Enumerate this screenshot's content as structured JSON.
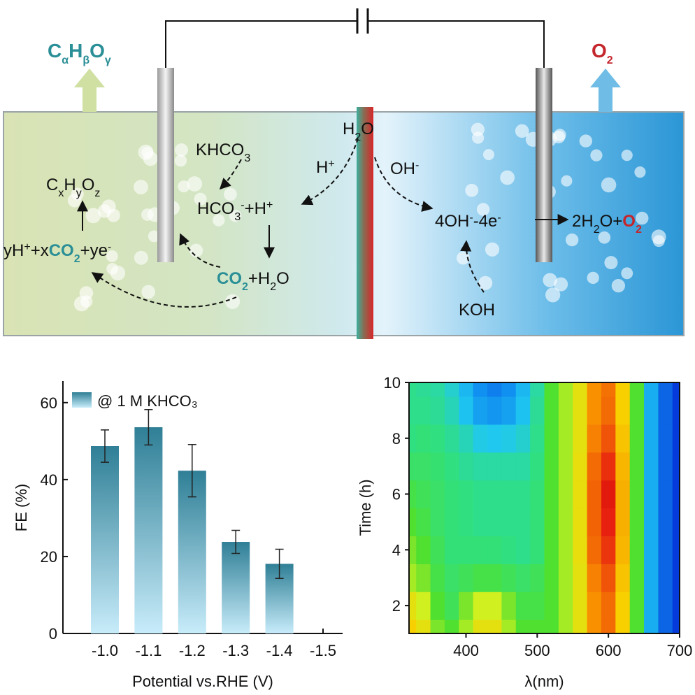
{
  "diagram": {
    "cathode_product": [
      "C",
      "α",
      "H",
      "β",
      "O",
      "γ"
    ],
    "anode_product": [
      "O",
      "2"
    ],
    "water": [
      "H",
      "2",
      "O"
    ],
    "khco3": [
      "KHCO",
      "3"
    ],
    "proton": [
      "H",
      "+"
    ],
    "hydroxide": [
      "OH",
      "-"
    ],
    "cxhyoz": [
      "C",
      "x",
      "H",
      "y",
      "O",
      "z"
    ],
    "bicarbonate": [
      "HCO",
      "3",
      "-",
      "+H",
      "+"
    ],
    "reduction": [
      "yH",
      "+",
      "+x",
      "CO",
      "2",
      "+ye",
      "-"
    ],
    "co2_water": [
      "CO",
      "2",
      "+H",
      "2",
      "O"
    ],
    "oxidation_left": [
      "4OH",
      "-",
      "-4e",
      "-"
    ],
    "oxidation_right": [
      "2H",
      "2",
      "O+",
      "O",
      "2"
    ],
    "koh": "KOH"
  },
  "chart_data": [
    {
      "type": "bar",
      "categories": [
        "-1.0",
        "-1.1",
        "-1.2",
        "-1.3",
        "-1.4",
        "-1.5"
      ],
      "series": [
        {
          "name": "@ 1 M KHCO₃",
          "color": "#2f7f96",
          "values": [
            48.7,
            53.6,
            42.3,
            23.8,
            18.1,
            null
          ],
          "errors": [
            4.2,
            4.6,
            6.8,
            3.0,
            3.8,
            null
          ]
        }
      ],
      "ylim": [
        0,
        65.6
      ],
      "yticks": [
        0,
        20,
        40,
        60
      ],
      "xlabel": "Potential vs.RHE (V)",
      "ylabel": "FE (%)"
    },
    {
      "type": "contour",
      "x": [
        320,
        340,
        360,
        380,
        400,
        420,
        440,
        460,
        480,
        500,
        520,
        540,
        560,
        580,
        600,
        620,
        640,
        660,
        680,
        700
      ],
      "y": [
        1,
        2,
        3,
        4,
        5,
        6,
        7,
        8,
        9,
        10
      ],
      "z": [
        [
          0.7,
          0.65,
          0.5,
          0.45,
          0.55,
          0.65,
          0.65,
          0.55,
          0.45,
          0.45,
          0.45,
          0.55,
          0.65,
          0.8,
          0.85,
          0.7,
          0.45,
          0.2,
          0.1,
          0.05
        ],
        [
          0.65,
          0.6,
          0.45,
          0.4,
          0.5,
          0.6,
          0.6,
          0.5,
          0.42,
          0.42,
          0.45,
          0.55,
          0.65,
          0.8,
          0.85,
          0.7,
          0.45,
          0.2,
          0.1,
          0.05
        ],
        [
          0.55,
          0.5,
          0.42,
          0.38,
          0.4,
          0.42,
          0.42,
          0.4,
          0.38,
          0.4,
          0.45,
          0.55,
          0.65,
          0.82,
          0.88,
          0.72,
          0.45,
          0.2,
          0.1,
          0.05
        ],
        [
          0.5,
          0.45,
          0.4,
          0.36,
          0.36,
          0.36,
          0.36,
          0.35,
          0.34,
          0.36,
          0.45,
          0.55,
          0.66,
          0.85,
          0.92,
          0.74,
          0.45,
          0.2,
          0.1,
          0.05
        ],
        [
          0.45,
          0.42,
          0.38,
          0.36,
          0.35,
          0.34,
          0.34,
          0.34,
          0.34,
          0.36,
          0.45,
          0.55,
          0.66,
          0.86,
          0.95,
          0.75,
          0.45,
          0.2,
          0.1,
          0.05
        ],
        [
          0.42,
          0.4,
          0.38,
          0.36,
          0.35,
          0.34,
          0.34,
          0.34,
          0.34,
          0.36,
          0.45,
          0.55,
          0.66,
          0.86,
          0.96,
          0.75,
          0.45,
          0.2,
          0.1,
          0.05
        ],
        [
          0.38,
          0.38,
          0.37,
          0.35,
          0.33,
          0.32,
          0.32,
          0.32,
          0.32,
          0.35,
          0.45,
          0.55,
          0.66,
          0.85,
          0.93,
          0.74,
          0.45,
          0.2,
          0.1,
          0.05
        ],
        [
          0.35,
          0.36,
          0.35,
          0.33,
          0.3,
          0.26,
          0.25,
          0.26,
          0.28,
          0.34,
          0.45,
          0.55,
          0.65,
          0.82,
          0.88,
          0.72,
          0.45,
          0.2,
          0.1,
          0.05
        ],
        [
          0.34,
          0.34,
          0.33,
          0.3,
          0.24,
          0.18,
          0.16,
          0.18,
          0.24,
          0.33,
          0.45,
          0.55,
          0.65,
          0.8,
          0.85,
          0.7,
          0.45,
          0.2,
          0.1,
          0.05
        ],
        [
          0.34,
          0.33,
          0.32,
          0.28,
          0.22,
          0.15,
          0.13,
          0.15,
          0.22,
          0.32,
          0.45,
          0.55,
          0.65,
          0.8,
          0.84,
          0.7,
          0.45,
          0.2,
          0.1,
          0.05
        ]
      ],
      "xlim": [
        320,
        700
      ],
      "ylim": [
        1,
        10
      ],
      "xticks": [
        400,
        500,
        600,
        700
      ],
      "yticks": [
        2,
        4,
        6,
        8,
        10
      ],
      "xlabel": "λ(nm)",
      "ylabel": "Time (h)"
    }
  ]
}
